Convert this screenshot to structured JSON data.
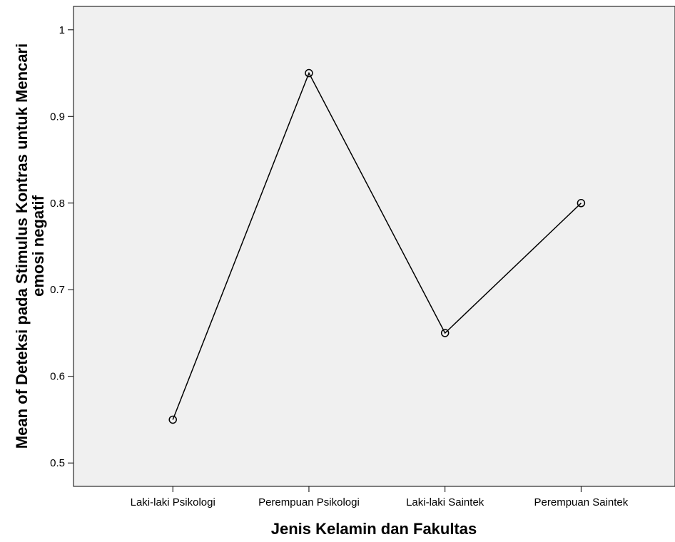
{
  "chart_data": {
    "type": "line",
    "title": "",
    "xlabel": "Jenis Kelamin dan Fakultas",
    "ylabel_lines": [
      "Mean of Deteksi pada Stimulus Kontras untuk Mencari",
      "emosi negatif"
    ],
    "categories": [
      "Laki-laki Psikologi",
      "Perempuan Psikologi",
      "Laki-laki Saintek",
      "Perempuan Saintek"
    ],
    "values": [
      0.55,
      0.95,
      0.65,
      0.8
    ],
    "ylim": [
      0.473,
      1.027
    ],
    "yticks": [
      0.5,
      0.6,
      0.7,
      0.8,
      0.9,
      1
    ],
    "ytick_labels": [
      "0.5",
      "0.6",
      "0.7",
      "0.8",
      "0.9",
      "1"
    ],
    "grid": false,
    "marker": "open-circle",
    "colors": {
      "plot_background": "#f0f0f0",
      "line": "#000000"
    }
  }
}
